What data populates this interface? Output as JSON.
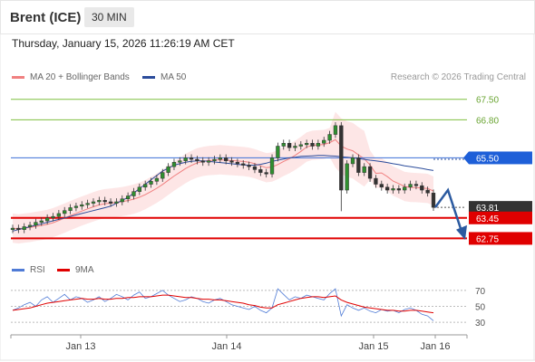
{
  "header": {
    "instrument": "Brent (ICE)",
    "timeframe": "30 MIN"
  },
  "datetime": "Thursday, January 15, 2026 11:26:19 AM CET",
  "legend": {
    "bollinger": "MA 20 + Bollinger Bands",
    "ma50": "MA 50",
    "copyright": "Research © 2026 Trading Central"
  },
  "rsi_legend": {
    "rsi": "RSI",
    "ma9": "9MA"
  },
  "colors": {
    "bollinger": "#f08080",
    "ma50": "#2b4c9b",
    "resistance_line": "#3c6fd6",
    "support_line": "#e00000",
    "target_line": "#7fbf3f",
    "current_price_box": "#333333",
    "arrow": "#2b5aa0",
    "candle": "#2f8f2f",
    "rsi": "#4f7bd6",
    "rsi_ma": "#e00000"
  },
  "chart_data": {
    "type": "candlestick",
    "x_labels": [
      "Jan 13",
      "Jan 14",
      "Jan 15",
      "Jan 16"
    ],
    "ylim": [
      62.3,
      67.8
    ],
    "levels": [
      {
        "name": "target-2",
        "value": 67.5,
        "label": "67.50",
        "style": "target"
      },
      {
        "name": "target-1",
        "value": 66.8,
        "label": "66.80",
        "style": "target"
      },
      {
        "name": "pivot",
        "value": 65.5,
        "label": "65.50",
        "style": "pivot"
      },
      {
        "name": "current",
        "value": 63.81,
        "label": "63.81",
        "style": "current"
      },
      {
        "name": "support-1",
        "value": 63.45,
        "label": "63.45",
        "style": "support"
      },
      {
        "name": "support-2",
        "value": 62.75,
        "label": "62.75",
        "style": "support"
      }
    ],
    "close_series": [
      63.1,
      63.05,
      63.15,
      63.2,
      63.3,
      63.35,
      63.45,
      63.5,
      63.6,
      63.7,
      63.8,
      63.85,
      63.9,
      63.95,
      64.0,
      64.05,
      64.0,
      63.95,
      64.0,
      64.1,
      64.2,
      64.35,
      64.5,
      64.6,
      64.7,
      64.8,
      65.0,
      65.2,
      65.35,
      65.4,
      65.5,
      65.45,
      65.4,
      65.35,
      65.4,
      65.45,
      65.5,
      65.4,
      65.35,
      65.3,
      65.25,
      65.2,
      65.1,
      65.0,
      64.95,
      65.5,
      65.9,
      66.0,
      65.85,
      65.9,
      65.95,
      66.0,
      65.9,
      66.0,
      66.1,
      66.3,
      66.6,
      64.4,
      65.3,
      65.5,
      65.0,
      65.2,
      64.8,
      64.6,
      64.5,
      64.4,
      64.45,
      64.4,
      64.5,
      64.6,
      64.55,
      64.4,
      64.3,
      63.81
    ],
    "ma50_series": [
      63.0,
      63.05,
      63.1,
      63.15,
      63.2,
      63.25,
      63.3,
      63.35,
      63.4,
      63.45,
      63.5,
      63.55,
      63.6,
      63.65,
      63.7,
      63.75,
      63.8,
      63.85,
      63.95,
      64.05,
      64.15,
      64.3,
      64.45,
      64.6,
      64.75,
      64.9,
      65.05,
      65.15,
      65.25,
      65.3,
      65.35,
      65.38,
      65.4,
      65.4,
      65.38,
      65.36,
      65.34,
      65.32,
      65.3,
      65.28,
      65.26,
      65.25,
      65.25,
      65.28,
      65.32,
      65.38,
      65.42,
      65.46,
      65.5,
      65.52,
      65.55,
      65.56,
      65.57,
      65.58,
      65.58,
      65.57,
      65.56,
      65.54,
      65.52,
      65.5,
      65.48,
      65.45,
      65.42,
      65.4,
      65.37,
      65.34,
      65.3,
      65.27,
      65.23,
      65.2,
      65.17,
      65.14,
      65.1,
      65.07
    ],
    "rsi": {
      "levels": [
        70,
        50,
        30
      ],
      "ylim": [
        20,
        80
      ],
      "rsi_series": [
        45,
        48,
        52,
        55,
        50,
        58,
        62,
        55,
        60,
        65,
        58,
        62,
        60,
        55,
        58,
        62,
        56,
        60,
        65,
        62,
        58,
        64,
        68,
        60,
        62,
        66,
        70,
        64,
        60,
        56,
        58,
        62,
        60,
        56,
        54,
        58,
        60,
        56,
        52,
        50,
        48,
        46,
        50,
        45,
        42,
        48,
        72,
        65,
        58,
        62,
        60,
        64,
        62,
        60,
        58,
        66,
        72,
        38,
        52,
        48,
        45,
        48,
        44,
        42,
        46,
        44,
        45,
        42,
        46,
        48,
        45,
        40,
        38,
        32
      ],
      "ma9_series": [
        45,
        46,
        47,
        48,
        50,
        52,
        54,
        55,
        56,
        57,
        58,
        59,
        60,
        59,
        59,
        60,
        59,
        59,
        60,
        60,
        61,
        61,
        62,
        62,
        62,
        63,
        64,
        64,
        63,
        62,
        61,
        61,
        60,
        59,
        59,
        58,
        58,
        57,
        56,
        55,
        54,
        52,
        51,
        49,
        48,
        48,
        52,
        54,
        56,
        58,
        60,
        61,
        62,
        62,
        61,
        62,
        63,
        58,
        55,
        53,
        51,
        49,
        48,
        47,
        46,
        45,
        45,
        44,
        44,
        45,
        45,
        44,
        43,
        42
      ]
    }
  }
}
